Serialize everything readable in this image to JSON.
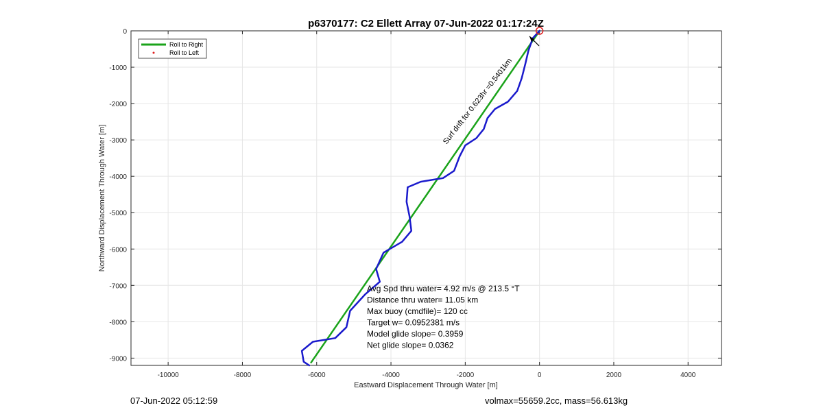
{
  "chart_data": {
    "type": "line",
    "title": "p6370177: C2 Ellett Array 07-Jun-2022 01:17:24Z",
    "xlabel": "Eastward Displacement Through Water [m]",
    "ylabel": "Northward Displacement Through Water [m]",
    "xlim": [
      -11000,
      4900
    ],
    "ylim": [
      -9200,
      0
    ],
    "xticks": [
      -10000,
      -8000,
      -6000,
      -4000,
      -2000,
      0,
      2000,
      4000
    ],
    "yticks": [
      0,
      -1000,
      -2000,
      -3000,
      -4000,
      -5000,
      -6000,
      -7000,
      -8000,
      -9000
    ],
    "grid": true,
    "legend": {
      "placement": "top-left",
      "entries": [
        {
          "label": "Roll to Right",
          "color": "#1aa31a",
          "marker": "line"
        },
        {
          "label": "Roll to Left",
          "color": "#e02020",
          "marker": "dot"
        }
      ]
    },
    "series": [
      {
        "name": "Roll to Right",
        "color": "#1aa31a",
        "points": [
          [
            0,
            0
          ],
          [
            -6150,
            -9120
          ]
        ]
      },
      {
        "color": "#1a1acc",
        "points": [
          [
            0,
            0
          ],
          [
            -180,
            -200
          ],
          [
            -300,
            -550
          ],
          [
            -380,
            -900
          ],
          [
            -480,
            -1300
          ],
          [
            -600,
            -1650
          ],
          [
            -850,
            -1950
          ],
          [
            -1200,
            -2150
          ],
          [
            -1400,
            -2400
          ],
          [
            -1500,
            -2700
          ],
          [
            -1700,
            -2950
          ],
          [
            -2000,
            -3150
          ],
          [
            -2150,
            -3450
          ],
          [
            -2300,
            -3850
          ],
          [
            -2600,
            -4050
          ],
          [
            -3200,
            -4150
          ],
          [
            -3550,
            -4300
          ],
          [
            -3580,
            -4700
          ],
          [
            -3500,
            -5100
          ],
          [
            -3450,
            -5500
          ],
          [
            -3700,
            -5800
          ],
          [
            -4200,
            -6100
          ],
          [
            -4400,
            -6550
          ],
          [
            -4300,
            -6900
          ],
          [
            -4700,
            -7250
          ],
          [
            -5100,
            -7700
          ],
          [
            -5200,
            -8150
          ],
          [
            -5500,
            -8450
          ],
          [
            -6100,
            -8550
          ],
          [
            -6400,
            -8800
          ],
          [
            -6350,
            -9100
          ],
          [
            -6200,
            -9200
          ]
        ]
      }
    ],
    "annotations": [
      {
        "text": "Avg Spd thru water=  4.92 m/s @ 213.5 °T\nDistance thru water= 11.05 km\nMax buoy (cmdfile)= 120 cc\nTarget w= 0.0952381 m/s\nModel glide slope= 0.3959\nNet glide slope= 0.0362"
      },
      {
        "text": "Surf drift for 0.623hr =0.5401km"
      }
    ]
  },
  "footer": {
    "timestamp": "07-Jun-2022 05:12:59",
    "volmax": "volmax=55659.2cc, mass=56.613kg"
  }
}
